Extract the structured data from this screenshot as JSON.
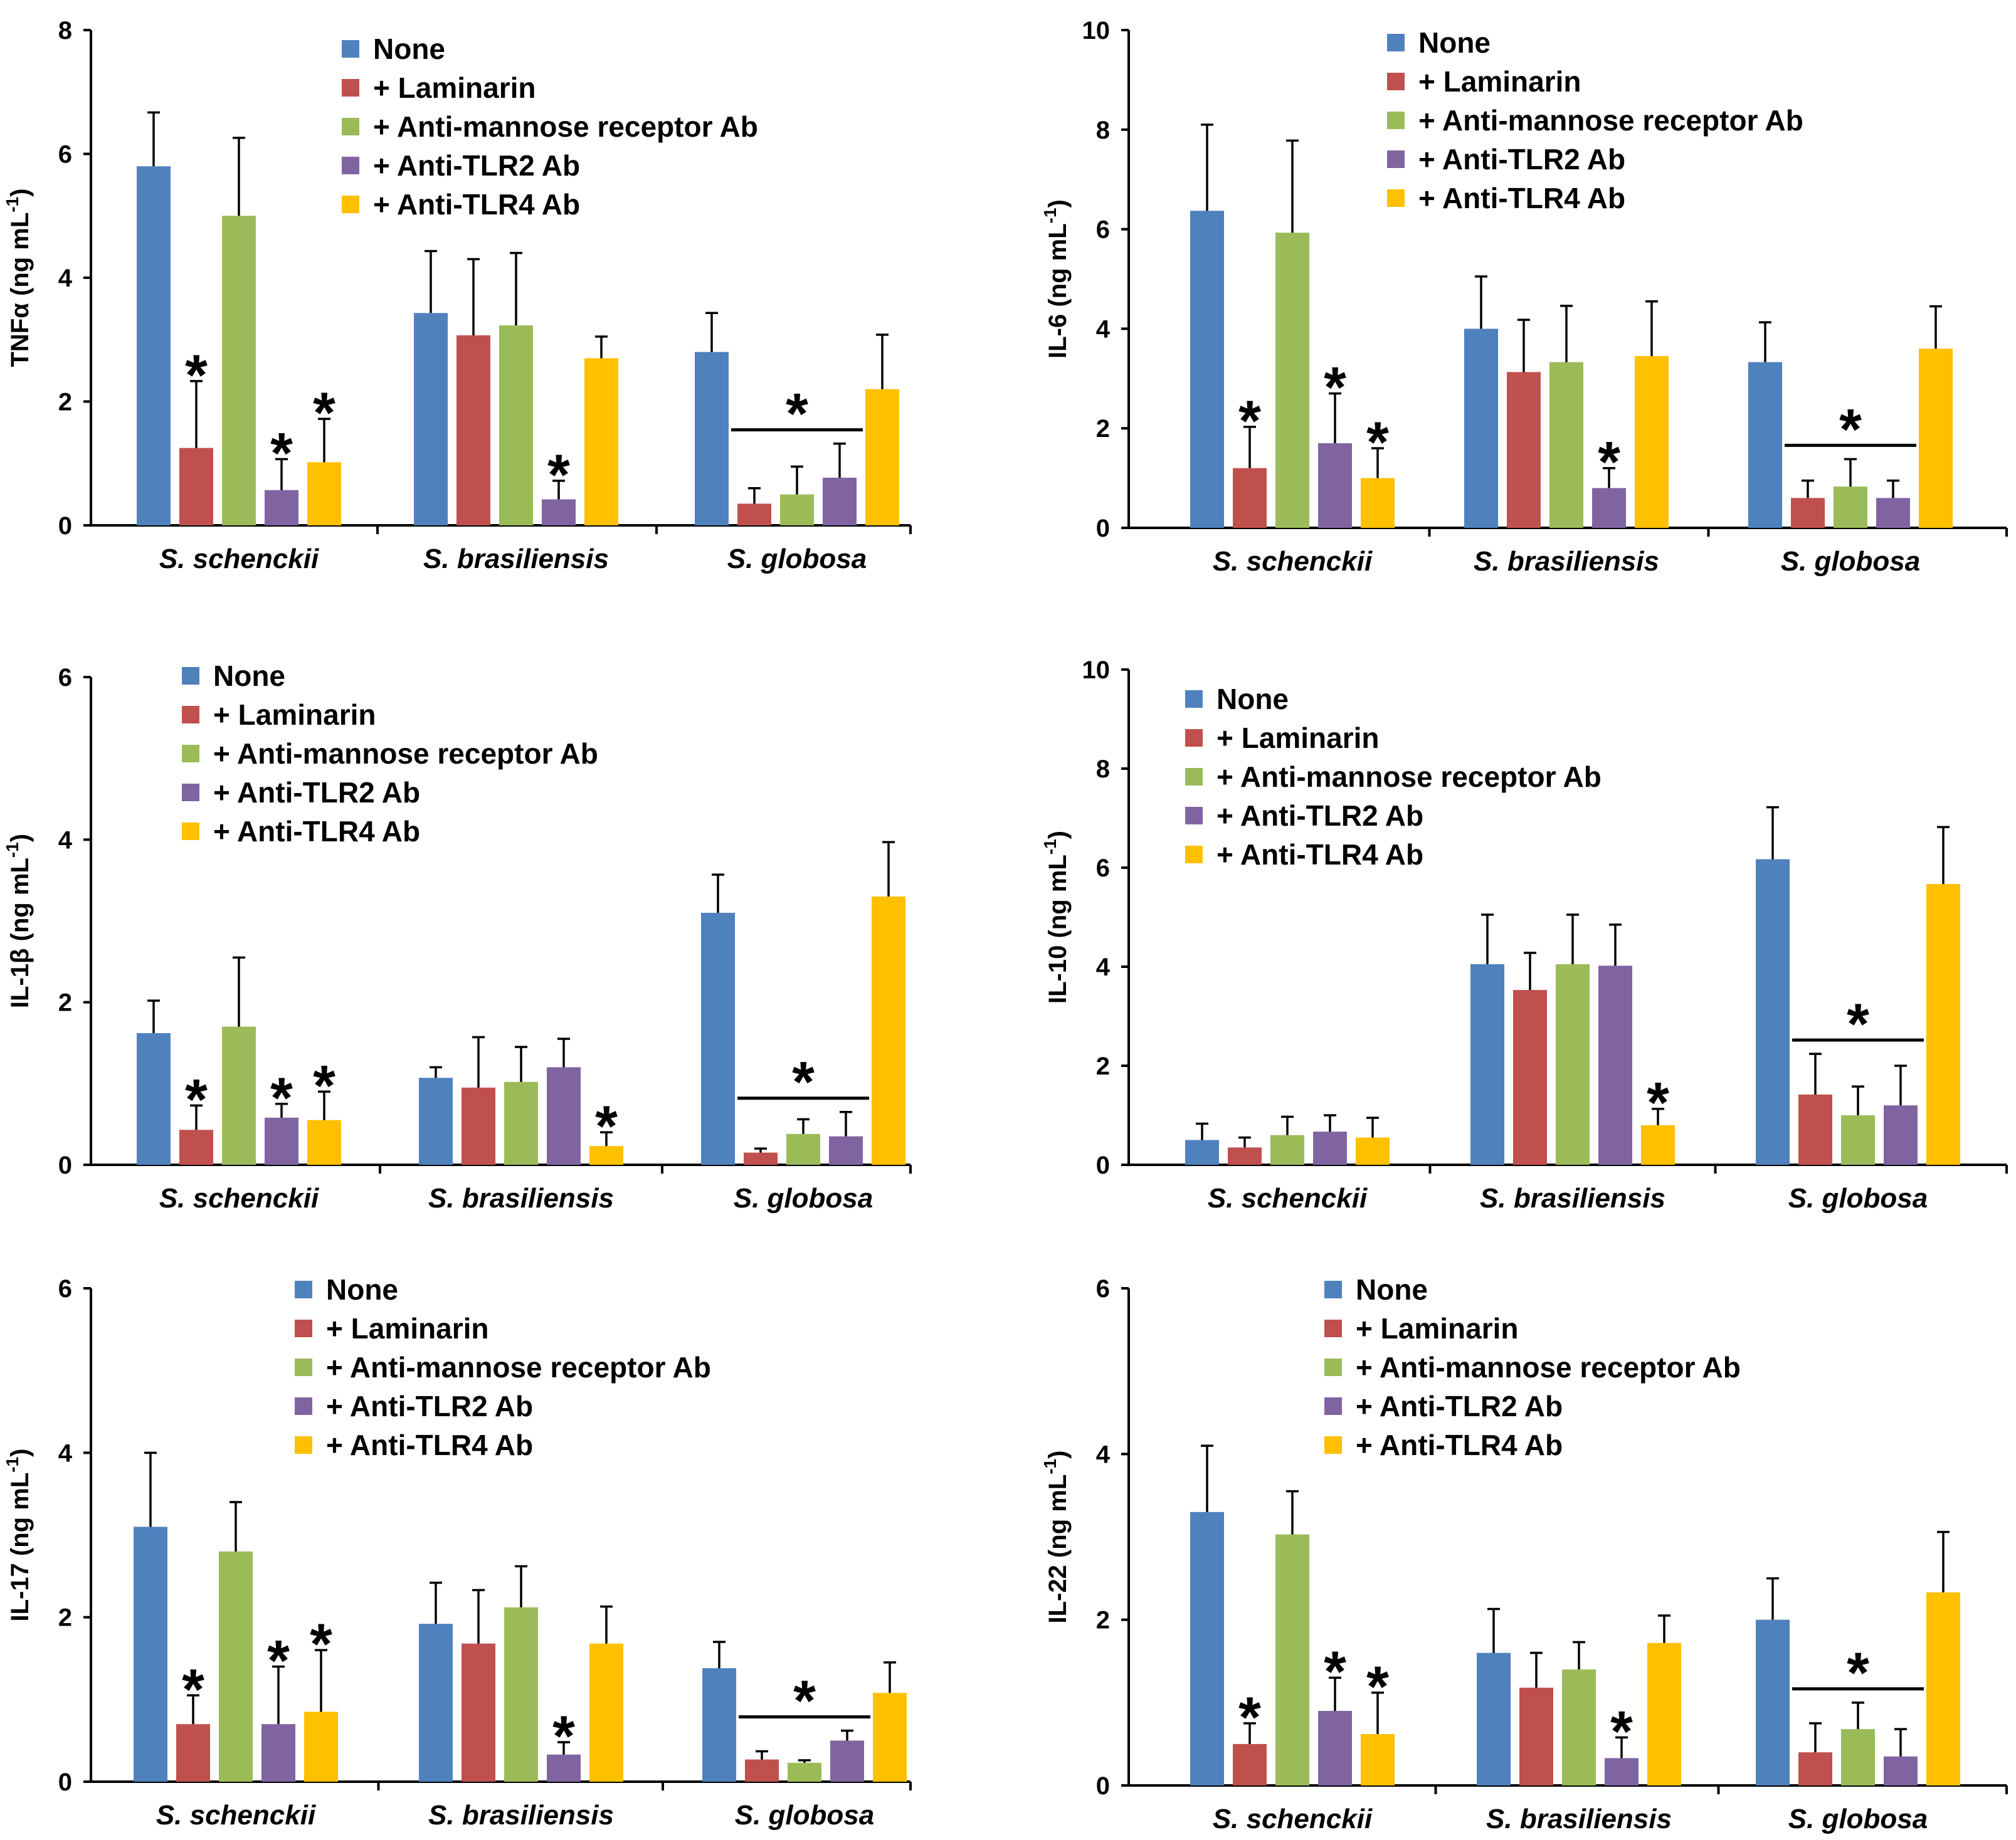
{
  "series_names": [
    "None",
    "+ Laminarin",
    "+ Anti-mannose receptor Ab",
    "+ Anti-TLR2 Ab",
    "+ Anti-TLR4 Ab"
  ],
  "series_colors": [
    "#4F81BD",
    "#C0504D",
    "#9BBB59",
    "#8064A2",
    "#FFC000"
  ],
  "categories": [
    "S. schenckii",
    "S. brasiliensis",
    "S. globosa"
  ],
  "star_symbol": "*",
  "chart_data": [
    {
      "type": "bar",
      "ylabel_main": "TNFα (ng mL",
      "ylabel_sup": "-1",
      "ylabel_close": ")",
      "ylim": [
        0,
        8
      ],
      "yticks": [
        0,
        2,
        4,
        6,
        8
      ],
      "values": [
        [
          5.8,
          1.25,
          5.0,
          0.57,
          1.02
        ],
        [
          3.43,
          3.07,
          3.23,
          0.42,
          2.7
        ],
        [
          2.8,
          0.35,
          0.5,
          0.77,
          2.2
        ]
      ],
      "errors": [
        [
          0.87,
          1.08,
          1.26,
          0.5,
          0.7
        ],
        [
          1.0,
          1.23,
          1.17,
          0.3,
          0.35
        ],
        [
          0.63,
          0.25,
          0.45,
          0.55,
          0.88
        ]
      ],
      "stars_individual": [
        [
          0,
          1
        ],
        [
          0,
          3
        ],
        [
          0,
          4
        ],
        [
          1,
          3
        ]
      ],
      "star_group": 2
    },
    {
      "type": "bar",
      "ylabel_main": "IL-6 (ng mL",
      "ylabel_sup": "-1",
      "ylabel_close": ")",
      "ylim": [
        0,
        10
      ],
      "yticks": [
        0,
        2,
        4,
        6,
        8,
        10
      ],
      "values": [
        [
          6.37,
          1.2,
          5.93,
          1.7,
          1.0
        ],
        [
          4.0,
          3.13,
          3.33,
          0.8,
          3.45
        ],
        [
          3.33,
          0.6,
          0.83,
          0.6,
          3.6
        ]
      ],
      "errors": [
        [
          1.73,
          0.83,
          1.85,
          1.0,
          0.6
        ],
        [
          1.05,
          1.05,
          1.13,
          0.4,
          1.1
        ],
        [
          0.8,
          0.35,
          0.55,
          0.35,
          0.85
        ]
      ],
      "stars_individual": [
        [
          0,
          1
        ],
        [
          0,
          3
        ],
        [
          0,
          4
        ],
        [
          1,
          3
        ]
      ],
      "star_group": 2
    },
    {
      "type": "bar",
      "ylabel_main": "IL-1β (ng mL",
      "ylabel_sup": "-1",
      "ylabel_close": ")",
      "ylim": [
        0,
        6
      ],
      "yticks": [
        0,
        2,
        4,
        6
      ],
      "values": [
        [
          1.62,
          0.43,
          1.7,
          0.58,
          0.55
        ],
        [
          1.07,
          0.95,
          1.02,
          1.2,
          0.23
        ],
        [
          3.1,
          0.15,
          0.38,
          0.35,
          3.3
        ]
      ],
      "errors": [
        [
          0.4,
          0.3,
          0.85,
          0.17,
          0.35
        ],
        [
          0.13,
          0.62,
          0.43,
          0.35,
          0.17
        ],
        [
          0.47,
          0.05,
          0.18,
          0.3,
          0.67
        ]
      ],
      "stars_individual": [
        [
          0,
          1
        ],
        [
          0,
          3
        ],
        [
          0,
          4
        ],
        [
          1,
          4
        ]
      ],
      "star_group": 2
    },
    {
      "type": "bar",
      "ylabel_main": "IL-10 (ng mL",
      "ylabel_sup": "-1",
      "ylabel_close": ")",
      "ylim": [
        0,
        10
      ],
      "yticks": [
        0,
        2,
        4,
        6,
        8,
        10
      ],
      "values": [
        [
          0.5,
          0.35,
          0.6,
          0.67,
          0.55
        ],
        [
          4.05,
          3.53,
          4.05,
          4.02,
          0.8
        ],
        [
          6.17,
          1.42,
          1.0,
          1.2,
          5.67
        ]
      ],
      "errors": [
        [
          0.33,
          0.2,
          0.37,
          0.33,
          0.4
        ],
        [
          1.0,
          0.75,
          1.0,
          0.83,
          0.33
        ],
        [
          1.05,
          0.82,
          0.58,
          0.8,
          1.15
        ]
      ],
      "stars_individual": [
        [
          1,
          4
        ]
      ],
      "star_group": 2
    },
    {
      "type": "bar",
      "ylabel_main": "IL-17 (ng mL",
      "ylabel_sup": "-1",
      "ylabel_close": ")",
      "ylim": [
        0,
        6
      ],
      "yticks": [
        0,
        2,
        4,
        6
      ],
      "values": [
        [
          3.1,
          0.7,
          2.8,
          0.7,
          0.85
        ],
        [
          1.92,
          1.68,
          2.12,
          0.33,
          1.68
        ],
        [
          1.38,
          0.27,
          0.23,
          0.5,
          1.08
        ]
      ],
      "errors": [
        [
          0.9,
          0.35,
          0.6,
          0.7,
          0.75
        ],
        [
          0.5,
          0.65,
          0.5,
          0.15,
          0.45
        ],
        [
          0.32,
          0.1,
          0.03,
          0.12,
          0.37
        ]
      ],
      "stars_individual": [
        [
          0,
          1
        ],
        [
          0,
          3
        ],
        [
          0,
          4
        ],
        [
          1,
          3
        ]
      ],
      "star_group": 2
    },
    {
      "type": "bar",
      "ylabel_main": "IL-22 (ng mL",
      "ylabel_sup": "-1",
      "ylabel_close": ")",
      "ylim": [
        0,
        6
      ],
      "yticks": [
        0,
        2,
        4,
        6
      ],
      "values": [
        [
          3.3,
          0.5,
          3.03,
          0.9,
          0.62
        ],
        [
          1.6,
          1.18,
          1.4,
          0.33,
          1.72
        ],
        [
          2.0,
          0.4,
          0.68,
          0.35,
          2.33
        ]
      ],
      "errors": [
        [
          0.8,
          0.25,
          0.52,
          0.4,
          0.5
        ],
        [
          0.53,
          0.42,
          0.33,
          0.25,
          0.33
        ],
        [
          0.5,
          0.35,
          0.32,
          0.33,
          0.73
        ]
      ],
      "stars_individual": [
        [
          0,
          1
        ],
        [
          0,
          3
        ],
        [
          0,
          4
        ],
        [
          1,
          3
        ]
      ],
      "star_group": 2
    }
  ]
}
